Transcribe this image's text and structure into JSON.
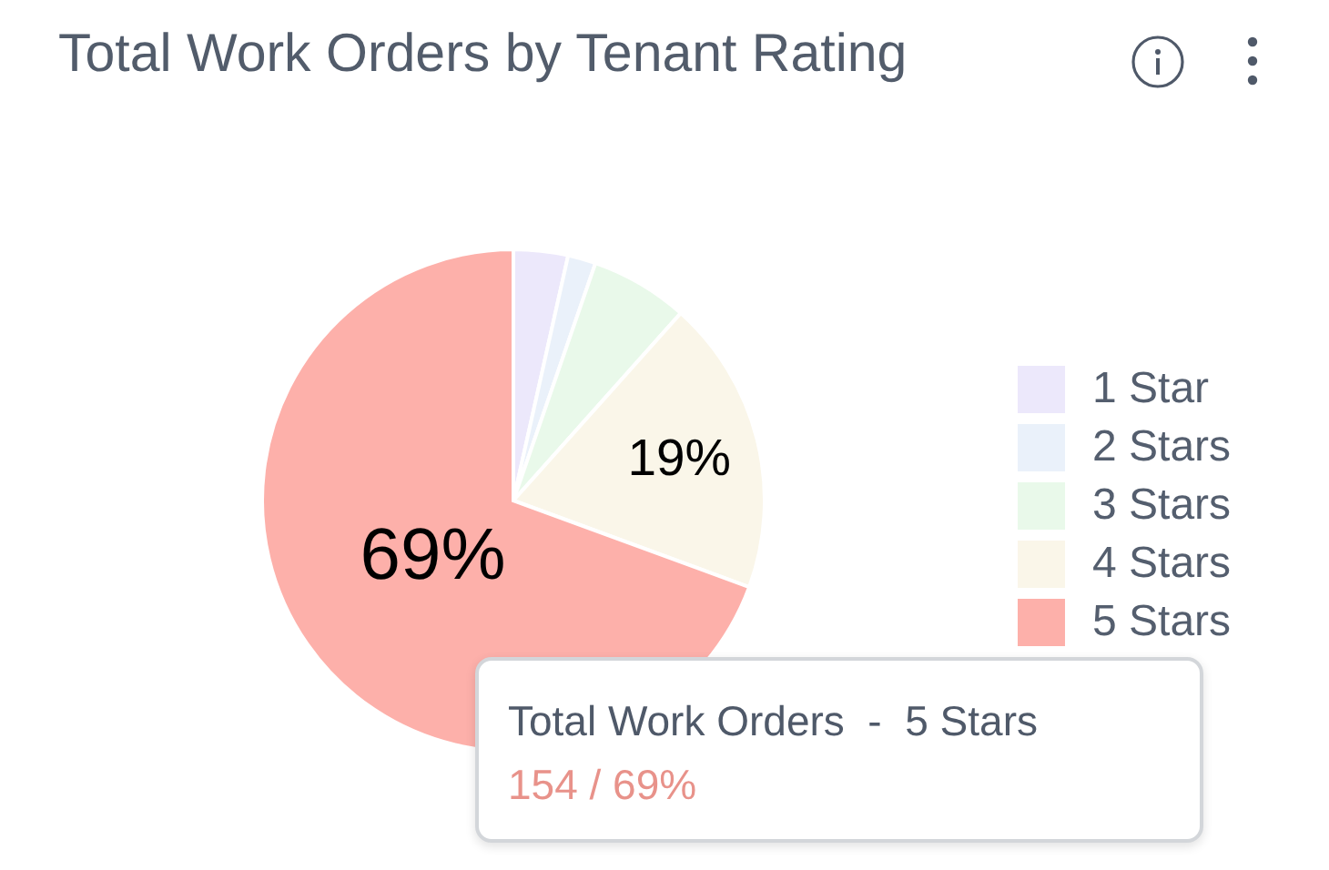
{
  "chart_data": {
    "type": "pie",
    "title": "Total Work Orders by Tenant Rating",
    "categories": [
      "1 Star",
      "2 Stars",
      "3 Stars",
      "4 Stars",
      "5 Stars"
    ],
    "values": [
      3.5,
      1.8,
      6.3,
      19.0,
      69.4
    ],
    "colors": [
      "#ece8fb",
      "#eaf1fa",
      "#e9f9ea",
      "#faf6e9",
      "#fdb0aa"
    ],
    "value_labels": [
      null,
      null,
      null,
      "19%",
      "69%"
    ],
    "legend": "right",
    "annotations": [
      "Total Work Orders  -  5 Stars",
      "154 / 69%"
    ]
  }
}
